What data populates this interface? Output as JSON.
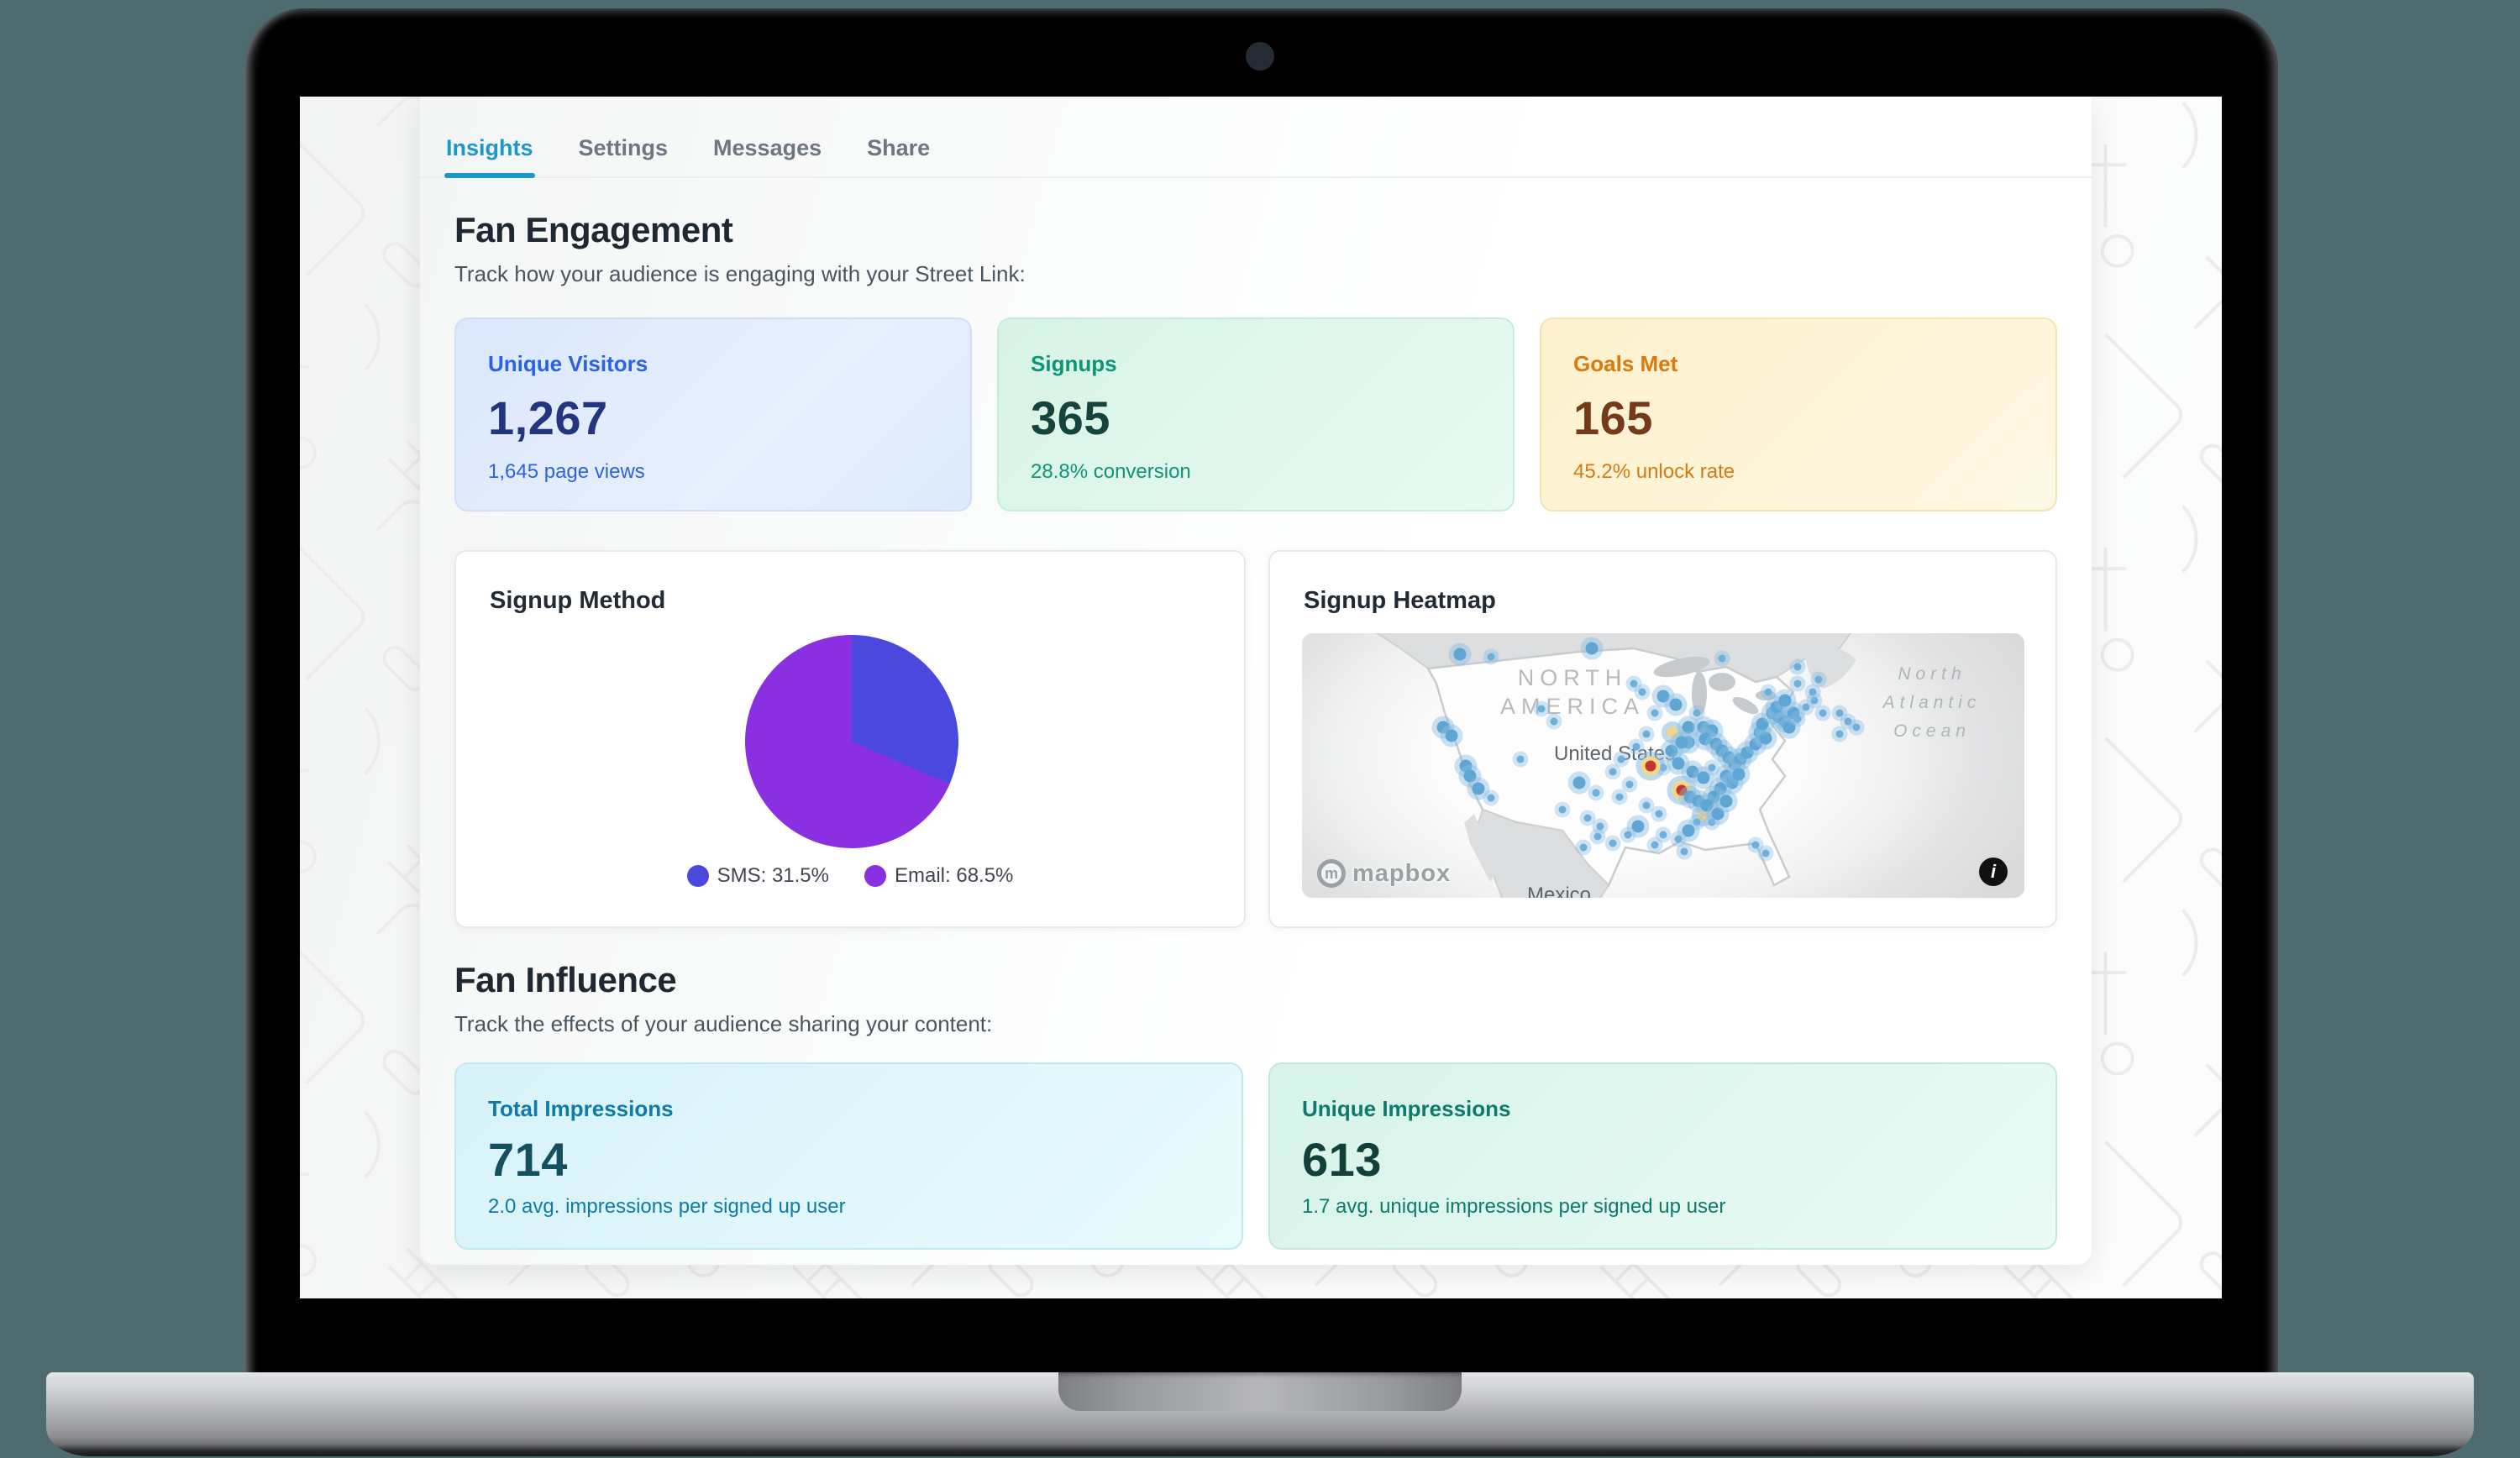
{
  "frame": {
    "background_color": "#4e6b70",
    "bezel_color": "#000000",
    "base_color": "#b4b5b9"
  },
  "tabs": [
    {
      "label": "Insights",
      "active": true
    },
    {
      "label": "Settings",
      "active": false
    },
    {
      "label": "Messages",
      "active": false
    },
    {
      "label": "Share",
      "active": false
    }
  ],
  "accent_color": "#1b98c8",
  "fan_engagement": {
    "heading": "Fan Engagement",
    "subtitle": "Track how your audience is engaging with your Street Link:",
    "cards": [
      {
        "title": "Unique Visitors",
        "value": "1,267",
        "sub": "1,645 page views",
        "theme": "blue",
        "title_color": "#2a62e6",
        "value_color": "#24357f"
      },
      {
        "title": "Signups",
        "value": "365",
        "sub": "28.8% conversion",
        "theme": "green",
        "title_color": "#0e9476",
        "value_color": "#17433d"
      },
      {
        "title": "Goals Met",
        "value": "165",
        "sub": "45.2% unlock rate",
        "theme": "amber",
        "title_color": "#d97a10",
        "value_color": "#753a17"
      }
    ]
  },
  "signup_method": {
    "title": "Signup Method"
  },
  "signup_heatmap": {
    "title": "Signup Heatmap",
    "attribution": "mapbox",
    "info_glyph": "i"
  },
  "fan_influence": {
    "heading": "Fan Influence",
    "subtitle": "Track the effects of your audience sharing your content:",
    "cards": [
      {
        "title": "Total Impressions",
        "value": "714",
        "sub": "2.0 avg. impressions per signed up user",
        "theme": "cyan",
        "title_color": "#0f7ba6",
        "value_color": "#14505e"
      },
      {
        "title": "Unique Impressions",
        "value": "613",
        "sub": "1.7 avg. unique impressions per signed up user",
        "theme": "teal",
        "title_color": "#0d7a6c",
        "value_color": "#123f3a"
      }
    ]
  },
  "chart_data": [
    {
      "type": "pie",
      "title": "Signup Method",
      "labels": [
        "SMS",
        "Email"
      ],
      "values": [
        31.5,
        68.5
      ],
      "colors": [
        "#4b48dd",
        "#8a30e2"
      ],
      "legend": [
        "SMS: 31.5%",
        "Email: 68.5%"
      ],
      "legend_position": "bottom",
      "start_angle_deg": 0,
      "direction": "clockwise"
    },
    {
      "type": "heatmap",
      "title": "Signup Heatmap",
      "region": "United States",
      "labels": {
        "continent_line1": "NORTH",
        "continent_line2": "AMERICA",
        "country": "United States",
        "country_south": "Mexico",
        "ocean_line1": "North",
        "ocean_line2": "Atlantic",
        "ocean_line3": "Ocean"
      },
      "point_color": "#5fa6d5",
      "hotspot_color": "#c4372a",
      "warmspot_color": "#efd693",
      "points": [
        [
          188,
          25,
          "b"
        ],
        [
          225,
          28,
          "s"
        ],
        [
          345,
          18,
          "b"
        ],
        [
          300,
          105,
          "s"
        ],
        [
          168,
          112,
          "b"
        ],
        [
          178,
          122,
          "b"
        ],
        [
          195,
          158,
          "b"
        ],
        [
          200,
          170,
          "b"
        ],
        [
          210,
          185,
          "b"
        ],
        [
          225,
          196,
          "s"
        ],
        [
          260,
          150,
          "s"
        ],
        [
          285,
          90,
          "s"
        ],
        [
          330,
          178,
          "b"
        ],
        [
          350,
          190,
          "s"
        ],
        [
          310,
          210,
          "s"
        ],
        [
          395,
          60,
          "s"
        ],
        [
          405,
          70,
          "s"
        ],
        [
          430,
          75,
          "b"
        ],
        [
          445,
          85,
          "b"
        ],
        [
          420,
          95,
          "s"
        ],
        [
          460,
          112,
          "b"
        ],
        [
          470,
          95,
          "s"
        ],
        [
          441,
          118,
          "w"
        ],
        [
          478,
          112,
          "b"
        ],
        [
          488,
          116,
          "b"
        ],
        [
          480,
          126,
          "b"
        ],
        [
          460,
          130,
          "b"
        ],
        [
          493,
          132,
          "b"
        ],
        [
          500,
          140,
          "b"
        ],
        [
          508,
          148,
          "b"
        ],
        [
          440,
          140,
          "b"
        ],
        [
          452,
          130,
          "b"
        ],
        [
          410,
          120,
          "s"
        ],
        [
          398,
          135,
          "s"
        ],
        [
          380,
          150,
          "s"
        ],
        [
          430,
          160,
          "s"
        ],
        [
          448,
          155,
          "b"
        ],
        [
          465,
          165,
          "b"
        ],
        [
          478,
          172,
          "b"
        ],
        [
          488,
          160,
          "s"
        ],
        [
          415,
          158,
          "h"
        ],
        [
          370,
          165,
          "s"
        ],
        [
          390,
          180,
          "s"
        ],
        [
          378,
          195,
          "s"
        ],
        [
          410,
          205,
          "s"
        ],
        [
          425,
          215,
          "s"
        ],
        [
          452,
          187,
          "h"
        ],
        [
          462,
          195,
          "b"
        ],
        [
          472,
          200,
          "b"
        ],
        [
          477,
          217,
          "w"
        ],
        [
          488,
          225,
          "s"
        ],
        [
          515,
          156,
          "b"
        ],
        [
          522,
          150,
          "b"
        ],
        [
          530,
          142,
          "b"
        ],
        [
          540,
          132,
          "b"
        ],
        [
          545,
          118,
          "b"
        ],
        [
          552,
          125,
          "b"
        ],
        [
          548,
          108,
          "b"
        ],
        [
          560,
          95,
          "b"
        ],
        [
          568,
          100,
          "b"
        ],
        [
          575,
          105,
          "b"
        ],
        [
          580,
          112,
          "b"
        ],
        [
          565,
          88,
          "b"
        ],
        [
          585,
          95,
          "b"
        ],
        [
          590,
          102,
          "s"
        ],
        [
          600,
          88,
          "s"
        ],
        [
          610,
          80,
          "s"
        ],
        [
          620,
          95,
          "s"
        ],
        [
          575,
          80,
          "b"
        ],
        [
          555,
          70,
          "s"
        ],
        [
          590,
          60,
          "s"
        ],
        [
          608,
          70,
          "s"
        ],
        [
          505,
          170,
          "b"
        ],
        [
          512,
          178,
          "b"
        ],
        [
          498,
          185,
          "b"
        ],
        [
          520,
          168,
          "b"
        ],
        [
          490,
          195,
          "b"
        ],
        [
          482,
          205,
          "b"
        ],
        [
          495,
          215,
          "b"
        ],
        [
          505,
          200,
          "b"
        ],
        [
          470,
          225,
          "s"
        ],
        [
          460,
          235,
          "b"
        ],
        [
          448,
          245,
          "s"
        ],
        [
          430,
          240,
          "s"
        ],
        [
          420,
          252,
          "s"
        ],
        [
          400,
          230,
          "b"
        ],
        [
          388,
          240,
          "s"
        ],
        [
          370,
          250,
          "s"
        ],
        [
          352,
          242,
          "s"
        ],
        [
          335,
          255,
          "s"
        ],
        [
          340,
          220,
          "s"
        ],
        [
          355,
          230,
          "s"
        ],
        [
          455,
          260,
          "s"
        ],
        [
          540,
          252,
          "s"
        ],
        [
          552,
          262,
          "s"
        ],
        [
          500,
          30,
          "s"
        ],
        [
          590,
          40,
          "s"
        ],
        [
          615,
          55,
          "s"
        ],
        [
          640,
          95,
          "s"
        ],
        [
          650,
          105,
          "s"
        ],
        [
          660,
          112,
          "s"
        ],
        [
          640,
          120,
          "s"
        ]
      ]
    }
  ]
}
